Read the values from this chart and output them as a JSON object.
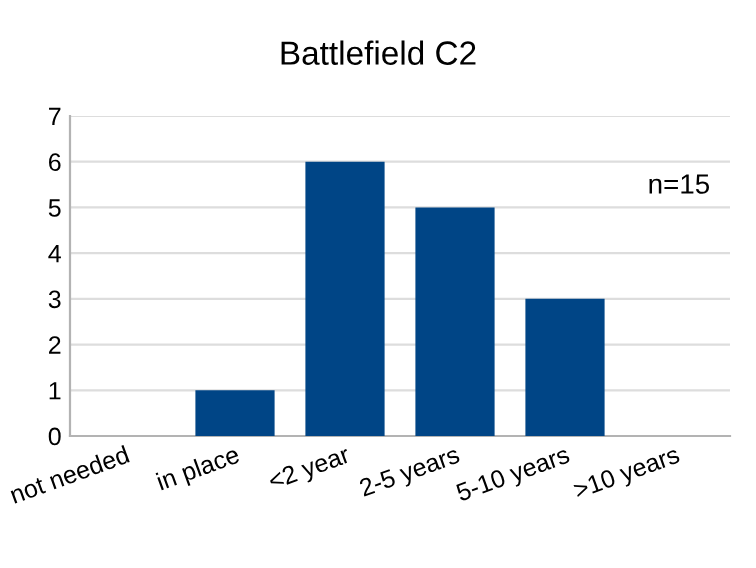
{
  "chart_data": {
    "type": "bar",
    "title": "Battlefield C2",
    "categories": [
      "not needed",
      "in place",
      "<2 year",
      "2-5 years",
      "5-10 years",
      ">10 years"
    ],
    "values": [
      0,
      1,
      6,
      5,
      3,
      0
    ],
    "color": "#004586",
    "ylim": [
      0,
      7
    ],
    "yticks": [
      0,
      1,
      2,
      3,
      4,
      5,
      6,
      7
    ],
    "grid": "y",
    "legend": false,
    "annotations": [
      "n=15"
    ]
  }
}
